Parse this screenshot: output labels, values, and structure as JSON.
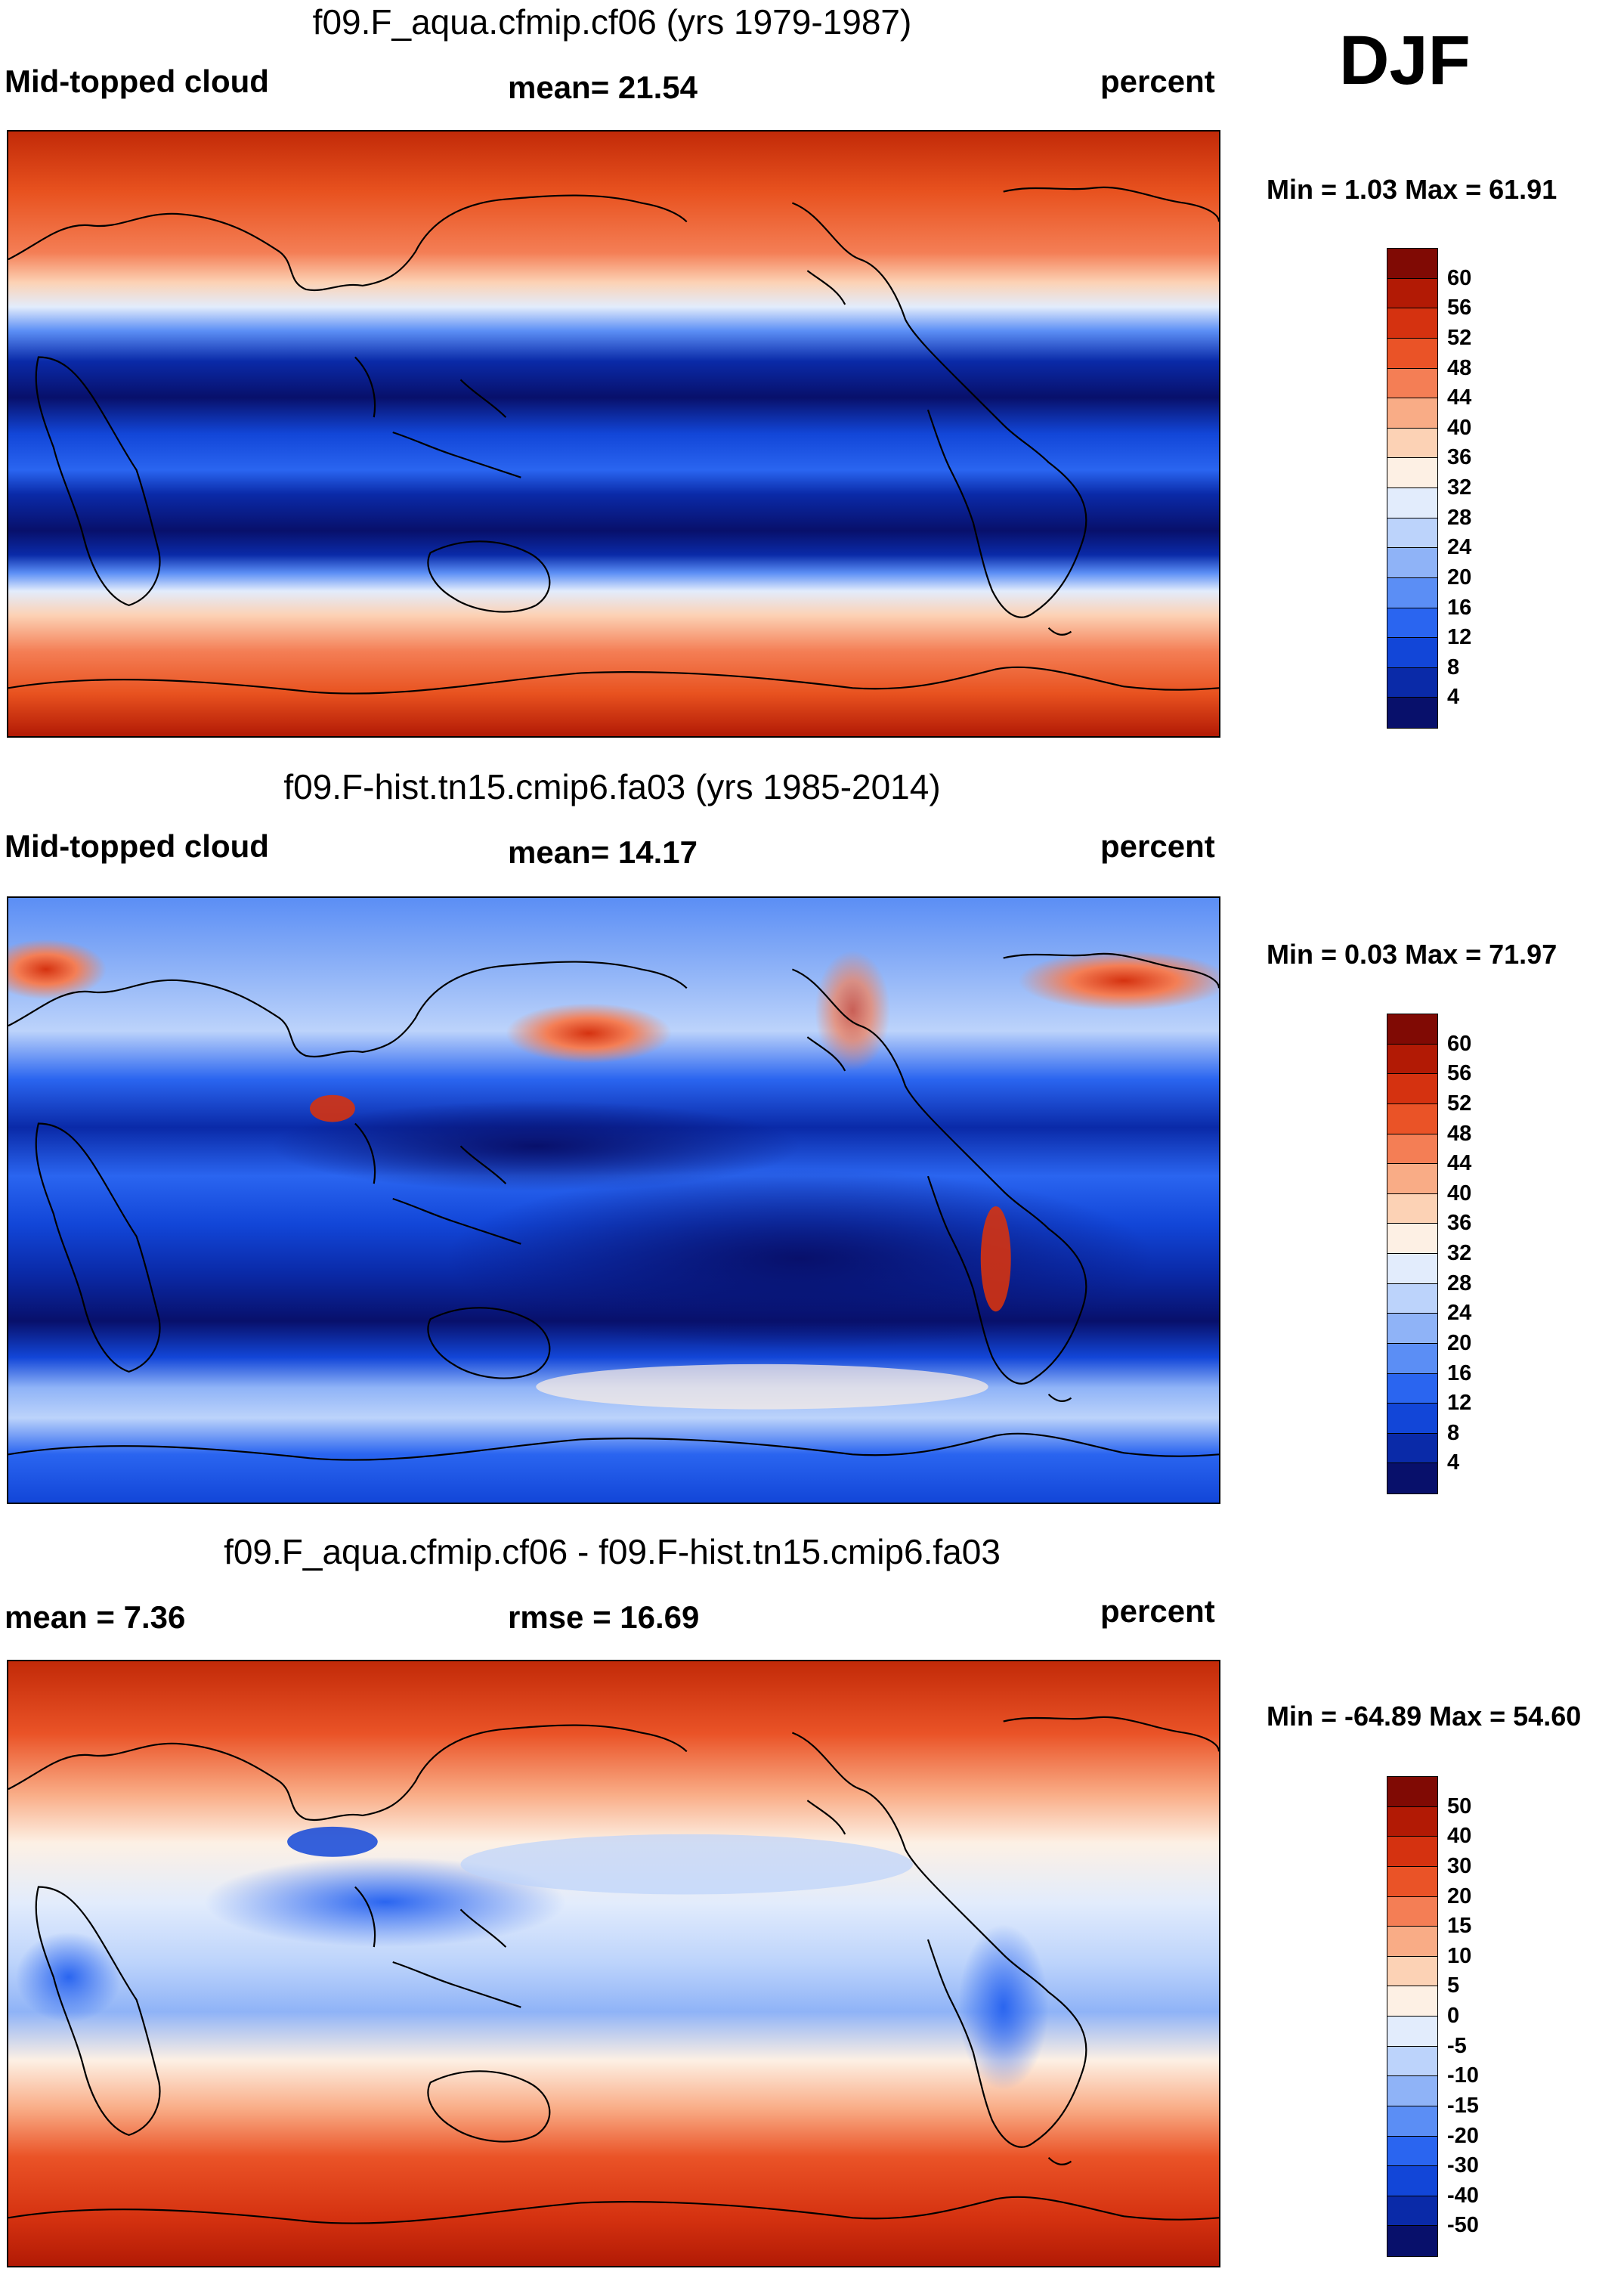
{
  "season": "DJF",
  "colors": {
    "scale": [
      "#08106b",
      "#0a2aa8",
      "#1246d8",
      "#2a65f0",
      "#5b8ef5",
      "#8fb3f7",
      "#bcd3fb",
      "#e2ecfc",
      "#fdf0e4",
      "#fcd2b5",
      "#f9ac86",
      "#f47e55",
      "#ea5327",
      "#d53210",
      "#b21a05",
      "#800a04"
    ],
    "land": "#000000"
  },
  "panels": [
    {
      "title": "f09.F_aqua.cfmip.cf06 (yrs 1979-1987)",
      "left_label": "Mid-topped cloud",
      "center_label": "mean=  21.54",
      "right_label": "percent",
      "minmax": "Min =   1.03 Max =  61.91",
      "colorbar_ticks": [
        "60",
        "56",
        "52",
        "48",
        "44",
        "40",
        "36",
        "32",
        "28",
        "24",
        "20",
        "16",
        "12",
        "8",
        "4"
      ]
    },
    {
      "title": "f09.F-hist.tn15.cmip6.fa03 (yrs 1985-2014)",
      "left_label": "Mid-topped cloud",
      "center_label": "mean=  14.17",
      "right_label": "percent",
      "minmax": "Min =   0.03 Max =  71.97",
      "colorbar_ticks": [
        "60",
        "56",
        "52",
        "48",
        "44",
        "40",
        "36",
        "32",
        "28",
        "24",
        "20",
        "16",
        "12",
        "8",
        "4"
      ]
    },
    {
      "title": "f09.F_aqua.cfmip.cf06 - f09.F-hist.tn15.cmip6.fa03",
      "left_label": "mean =    7.36",
      "center_label": "rmse =  16.69",
      "right_label": "percent",
      "minmax": "Min = -64.89 Max =  54.60",
      "colorbar_ticks": [
        "50",
        "40",
        "30",
        "20",
        "15",
        "10",
        "5",
        "0",
        "-5",
        "-10",
        "-15",
        "-20",
        "-30",
        "-40",
        "-50"
      ]
    }
  ]
}
